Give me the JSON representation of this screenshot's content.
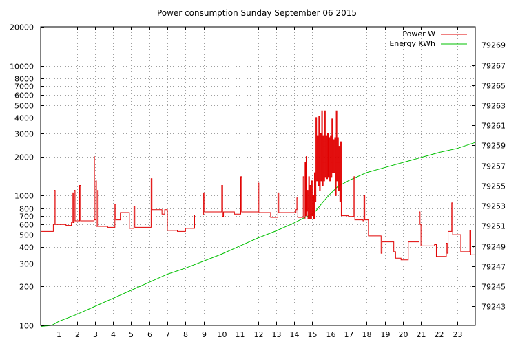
{
  "chart_data": {
    "type": "line",
    "title": "Power consumption Sunday September 06 2015",
    "x_axis": {
      "range": [
        0,
        24
      ],
      "tick_values": [
        1,
        2,
        3,
        4,
        5,
        6,
        7,
        8,
        9,
        10,
        11,
        12,
        13,
        14,
        15,
        16,
        17,
        18,
        19,
        20,
        21,
        22,
        23
      ],
      "tick_labels": [
        "1",
        "2",
        "3",
        "4",
        "5",
        "6",
        "7",
        "8",
        "9",
        "10",
        "11",
        "12",
        "13",
        "14",
        "15",
        "16",
        "17",
        "18",
        "19",
        "20",
        "21",
        "22",
        "23"
      ]
    },
    "y_axis_left": {
      "scale": "log",
      "range": [
        100,
        20000
      ],
      "tick_values": [
        100,
        200,
        300,
        400,
        500,
        600,
        700,
        800,
        1000,
        2000,
        3000,
        4000,
        5000,
        6000,
        7000,
        8000,
        10000,
        20000
      ],
      "tick_labels": [
        "100",
        "200",
        "300",
        "400",
        "500",
        "600",
        "700",
        "800",
        "1000",
        "2000",
        "3000",
        "4000",
        "5000",
        "6000",
        "7000",
        "8000",
        "10000",
        "20000"
      ]
    },
    "y_axis_right": {
      "scale": "linear",
      "range": [
        79241.1,
        79270.8
      ],
      "tick_values": [
        79243,
        79245,
        79247,
        79249,
        79251,
        79253,
        79255,
        79257,
        79259,
        79261,
        79263,
        79265,
        79267,
        79269
      ],
      "tick_labels": [
        "79243",
        "79245",
        "79247",
        "79249",
        "79251",
        "79253",
        "79255",
        "79257",
        "79259",
        "79261",
        "79263",
        "79265",
        "79267",
        "79269"
      ]
    },
    "grid": true,
    "legend_position": "top-right",
    "series": [
      {
        "name": "Power W",
        "axis": "left",
        "color": "#e00000",
        "points": [
          [
            0.0,
            530
          ],
          [
            0.7,
            530
          ],
          [
            0.7,
            600
          ],
          [
            0.75,
            600
          ],
          [
            0.75,
            1100
          ],
          [
            0.8,
            1100
          ],
          [
            0.8,
            600
          ],
          [
            1.4,
            600
          ],
          [
            1.4,
            590
          ],
          [
            1.7,
            590
          ],
          [
            1.7,
            620
          ],
          [
            1.75,
            620
          ],
          [
            1.75,
            1050
          ],
          [
            1.8,
            1050
          ],
          [
            1.8,
            620
          ],
          [
            1.85,
            620
          ],
          [
            1.85,
            1100
          ],
          [
            1.9,
            1100
          ],
          [
            1.9,
            640
          ],
          [
            2.15,
            640
          ],
          [
            2.15,
            1200
          ],
          [
            2.2,
            1200
          ],
          [
            2.2,
            640
          ],
          [
            2.95,
            640
          ],
          [
            2.95,
            2000
          ],
          [
            2.97,
            2000
          ],
          [
            2.97,
            650
          ],
          [
            3.05,
            650
          ],
          [
            3.05,
            1300
          ],
          [
            3.08,
            1300
          ],
          [
            3.08,
            580
          ],
          [
            3.15,
            580
          ],
          [
            3.15,
            1100
          ],
          [
            3.18,
            1100
          ],
          [
            3.18,
            580
          ],
          [
            3.7,
            580
          ],
          [
            3.7,
            570
          ],
          [
            4.1,
            570
          ],
          [
            4.1,
            860
          ],
          [
            4.15,
            860
          ],
          [
            4.15,
            650
          ],
          [
            4.4,
            650
          ],
          [
            4.4,
            740
          ],
          [
            4.9,
            740
          ],
          [
            4.9,
            560
          ],
          [
            5.15,
            560
          ],
          [
            5.15,
            820
          ],
          [
            5.2,
            820
          ],
          [
            5.2,
            570
          ],
          [
            6.1,
            570
          ],
          [
            6.1,
            1350
          ],
          [
            6.15,
            1350
          ],
          [
            6.15,
            780
          ],
          [
            6.7,
            780
          ],
          [
            6.7,
            720
          ],
          [
            6.85,
            720
          ],
          [
            6.85,
            780
          ],
          [
            7.0,
            780
          ],
          [
            7.0,
            540
          ],
          [
            7.55,
            540
          ],
          [
            7.55,
            530
          ],
          [
            8.0,
            530
          ],
          [
            8.0,
            560
          ],
          [
            8.5,
            560
          ],
          [
            8.5,
            710
          ],
          [
            9.0,
            710
          ],
          [
            9.0,
            1050
          ],
          [
            9.05,
            1050
          ],
          [
            9.05,
            750
          ],
          [
            10.0,
            750
          ],
          [
            10.0,
            1200
          ],
          [
            10.05,
            1200
          ],
          [
            10.05,
            690
          ],
          [
            10.1,
            690
          ],
          [
            10.1,
            750
          ],
          [
            10.7,
            750
          ],
          [
            10.7,
            720
          ],
          [
            11.05,
            720
          ],
          [
            11.05,
            1400
          ],
          [
            11.1,
            1400
          ],
          [
            11.1,
            750
          ],
          [
            12.0,
            750
          ],
          [
            12.0,
            1250
          ],
          [
            12.05,
            1250
          ],
          [
            12.05,
            740
          ],
          [
            12.7,
            740
          ],
          [
            12.7,
            680
          ],
          [
            13.1,
            680
          ],
          [
            13.1,
            1050
          ],
          [
            13.15,
            1050
          ],
          [
            13.15,
            740
          ],
          [
            14.1,
            740
          ],
          [
            14.1,
            780
          ],
          [
            14.15,
            780
          ],
          [
            14.15,
            960
          ],
          [
            14.2,
            960
          ],
          [
            14.2,
            680
          ],
          [
            14.5,
            680
          ],
          [
            14.5,
            1400
          ],
          [
            14.55,
            1400
          ],
          [
            14.55,
            660
          ],
          [
            14.6,
            660
          ],
          [
            14.6,
            1800
          ],
          [
            14.63,
            1800
          ],
          [
            14.63,
            700
          ],
          [
            14.66,
            700
          ],
          [
            14.66,
            2000
          ],
          [
            14.68,
            2000
          ],
          [
            14.68,
            760
          ],
          [
            14.72,
            760
          ],
          [
            14.72,
            1100
          ],
          [
            14.76,
            1100
          ],
          [
            14.76,
            660
          ],
          [
            14.8,
            660
          ],
          [
            14.8,
            1400
          ],
          [
            14.84,
            1400
          ],
          [
            14.84,
            660
          ],
          [
            14.88,
            660
          ],
          [
            14.88,
            1200
          ],
          [
            14.92,
            1200
          ],
          [
            14.92,
            660
          ],
          [
            14.96,
            660
          ],
          [
            14.96,
            1300
          ],
          [
            15.0,
            1300
          ],
          [
            15.0,
            700
          ],
          [
            15.04,
            700
          ],
          [
            15.04,
            1000
          ],
          [
            15.08,
            1000
          ],
          [
            15.08,
            660
          ],
          [
            15.12,
            660
          ],
          [
            15.12,
            1500
          ],
          [
            15.16,
            1500
          ],
          [
            15.16,
            900
          ],
          [
            15.2,
            900
          ],
          [
            15.2,
            4000
          ],
          [
            15.24,
            4000
          ],
          [
            15.24,
            1300
          ],
          [
            15.28,
            1300
          ],
          [
            15.28,
            2900
          ],
          [
            15.32,
            2900
          ],
          [
            15.32,
            1200
          ],
          [
            15.36,
            1200
          ],
          [
            15.36,
            4100
          ],
          [
            15.4,
            4100
          ],
          [
            15.4,
            1100
          ],
          [
            15.44,
            1100
          ],
          [
            15.44,
            3000
          ],
          [
            15.48,
            3000
          ],
          [
            15.48,
            1300
          ],
          [
            15.52,
            1300
          ],
          [
            15.52,
            4500
          ],
          [
            15.56,
            4500
          ],
          [
            15.56,
            1200
          ],
          [
            15.6,
            1200
          ],
          [
            15.6,
            2900
          ],
          [
            15.64,
            2900
          ],
          [
            15.64,
            1300
          ],
          [
            15.68,
            1300
          ],
          [
            15.68,
            4500
          ],
          [
            15.72,
            4500
          ],
          [
            15.72,
            1400
          ],
          [
            15.76,
            1400
          ],
          [
            15.76,
            2900
          ],
          [
            15.8,
            2900
          ],
          [
            15.8,
            1350
          ],
          [
            15.84,
            1350
          ],
          [
            15.84,
            3000
          ],
          [
            15.88,
            3000
          ],
          [
            15.88,
            1400
          ],
          [
            15.92,
            1400
          ],
          [
            15.92,
            2800
          ],
          [
            15.96,
            2800
          ],
          [
            15.96,
            1300
          ],
          [
            16.0,
            1300
          ],
          [
            16.0,
            2900
          ],
          [
            16.04,
            2900
          ],
          [
            16.04,
            1400
          ],
          [
            16.08,
            1400
          ],
          [
            16.08,
            3900
          ],
          [
            16.12,
            3900
          ],
          [
            16.12,
            1500
          ],
          [
            16.16,
            1500
          ],
          [
            16.16,
            2700
          ],
          [
            16.2,
            2700
          ],
          [
            16.2,
            1500
          ],
          [
            16.24,
            1500
          ],
          [
            16.24,
            2800
          ],
          [
            16.28,
            2800
          ],
          [
            16.28,
            1000
          ],
          [
            16.32,
            1000
          ],
          [
            16.32,
            4500
          ],
          [
            16.36,
            4500
          ],
          [
            16.36,
            1300
          ],
          [
            16.4,
            1300
          ],
          [
            16.4,
            2800
          ],
          [
            16.44,
            2800
          ],
          [
            16.44,
            1100
          ],
          [
            16.48,
            1100
          ],
          [
            16.48,
            2400
          ],
          [
            16.52,
            2400
          ],
          [
            16.52,
            900
          ],
          [
            16.56,
            900
          ],
          [
            16.56,
            2600
          ],
          [
            16.6,
            2600
          ],
          [
            16.6,
            700
          ],
          [
            17.0,
            700
          ],
          [
            17.0,
            690
          ],
          [
            17.3,
            690
          ],
          [
            17.3,
            1400
          ],
          [
            17.35,
            1400
          ],
          [
            17.35,
            650
          ],
          [
            17.8,
            650
          ],
          [
            17.8,
            640
          ],
          [
            17.85,
            640
          ],
          [
            17.85,
            1000
          ],
          [
            17.9,
            1000
          ],
          [
            17.9,
            650
          ],
          [
            18.1,
            650
          ],
          [
            18.1,
            490
          ],
          [
            18.8,
            490
          ],
          [
            18.8,
            360
          ],
          [
            18.85,
            360
          ],
          [
            18.85,
            440
          ],
          [
            19.5,
            440
          ],
          [
            19.5,
            370
          ],
          [
            19.6,
            370
          ],
          [
            19.6,
            330
          ],
          [
            19.9,
            330
          ],
          [
            19.9,
            320
          ],
          [
            20.3,
            320
          ],
          [
            20.3,
            440
          ],
          [
            20.9,
            440
          ],
          [
            20.9,
            750
          ],
          [
            20.95,
            750
          ],
          [
            20.95,
            600
          ],
          [
            21.0,
            600
          ],
          [
            21.0,
            410
          ],
          [
            21.75,
            410
          ],
          [
            21.75,
            420
          ],
          [
            21.85,
            420
          ],
          [
            21.85,
            340
          ],
          [
            22.4,
            340
          ],
          [
            22.4,
            430
          ],
          [
            22.45,
            430
          ],
          [
            22.45,
            360
          ],
          [
            22.5,
            360
          ],
          [
            22.5,
            530
          ],
          [
            22.7,
            530
          ],
          [
            22.7,
            880
          ],
          [
            22.75,
            880
          ],
          [
            22.75,
            500
          ],
          [
            23.2,
            500
          ],
          [
            23.2,
            370
          ],
          [
            23.7,
            370
          ],
          [
            23.7,
            540
          ],
          [
            23.75,
            540
          ],
          [
            23.75,
            350
          ],
          [
            24.0,
            350
          ]
        ]
      },
      {
        "name": "Energy KWh",
        "axis": "right",
        "color": "#00c000",
        "points": [
          [
            0.0,
            79241.0
          ],
          [
            0.6,
            79241.1
          ],
          [
            1.0,
            79241.5
          ],
          [
            2.0,
            79242.2
          ],
          [
            3.0,
            79243.0
          ],
          [
            4.0,
            79243.8
          ],
          [
            5.0,
            79244.6
          ],
          [
            6.0,
            79245.4
          ],
          [
            7.0,
            79246.2
          ],
          [
            8.0,
            79246.8
          ],
          [
            9.0,
            79247.5
          ],
          [
            10.0,
            79248.2
          ],
          [
            11.0,
            79249.0
          ],
          [
            12.0,
            79249.8
          ],
          [
            13.0,
            79250.5
          ],
          [
            14.0,
            79251.3
          ],
          [
            15.0,
            79252.2
          ],
          [
            15.2,
            79252.5
          ],
          [
            15.6,
            79253.4
          ],
          [
            16.0,
            79254.2
          ],
          [
            16.4,
            79254.9
          ],
          [
            16.8,
            79255.3
          ],
          [
            17.0,
            79255.5
          ],
          [
            18.0,
            79256.3
          ],
          [
            19.0,
            79256.8
          ],
          [
            20.0,
            79257.3
          ],
          [
            21.0,
            79257.8
          ],
          [
            22.0,
            79258.3
          ],
          [
            23.0,
            79258.7
          ],
          [
            24.0,
            79259.3
          ]
        ]
      }
    ]
  }
}
